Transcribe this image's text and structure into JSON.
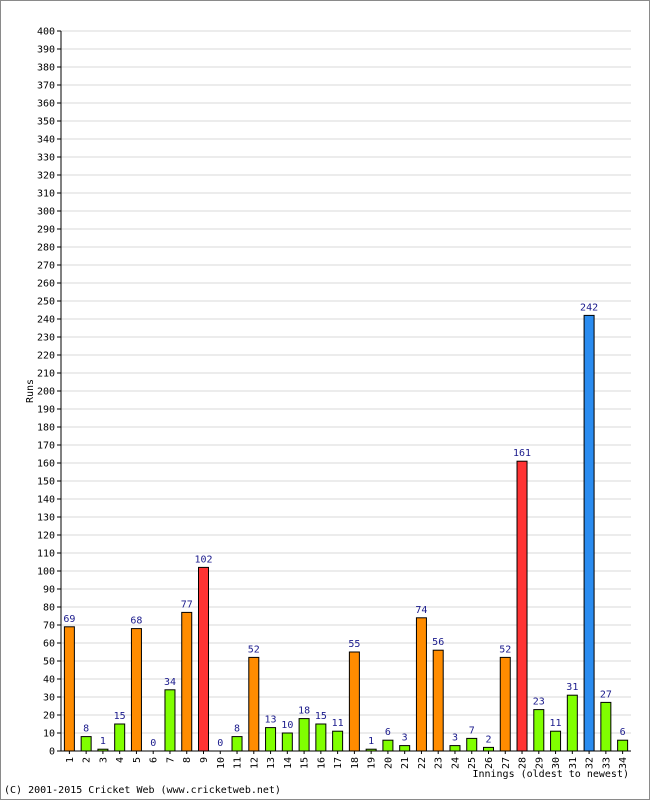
{
  "chart_data": {
    "type": "bar",
    "ylabel": "Runs",
    "xlabel": "Innings (oldest to newest)",
    "ylim": [
      0,
      400
    ],
    "ytick_step": 10,
    "grid": true,
    "categories": [
      "1",
      "2",
      "3",
      "4",
      "5",
      "6",
      "7",
      "8",
      "9",
      "10",
      "11",
      "12",
      "13",
      "14",
      "15",
      "16",
      "17",
      "18",
      "19",
      "20",
      "21",
      "22",
      "23",
      "24",
      "25",
      "26",
      "27",
      "28",
      "29",
      "30",
      "31",
      "32",
      "33",
      "34"
    ],
    "values": [
      69,
      8,
      1,
      15,
      68,
      0,
      34,
      77,
      102,
      0,
      8,
      52,
      13,
      10,
      18,
      15,
      11,
      55,
      1,
      6,
      3,
      74,
      56,
      3,
      7,
      2,
      52,
      161,
      23,
      11,
      31,
      242,
      27,
      6
    ],
    "colors": {
      "under_50": "#80ff00",
      "fifty_plus": "#ff8c00",
      "hundred_plus": "#ff3333",
      "two_hundred_plus": "#2a8cf0",
      "value_label": "#1a1a8c",
      "grid": "#d8d8d8"
    }
  },
  "footer": {
    "copyright": "(C) 2001-2015 Cricket Web (www.cricketweb.net)"
  }
}
